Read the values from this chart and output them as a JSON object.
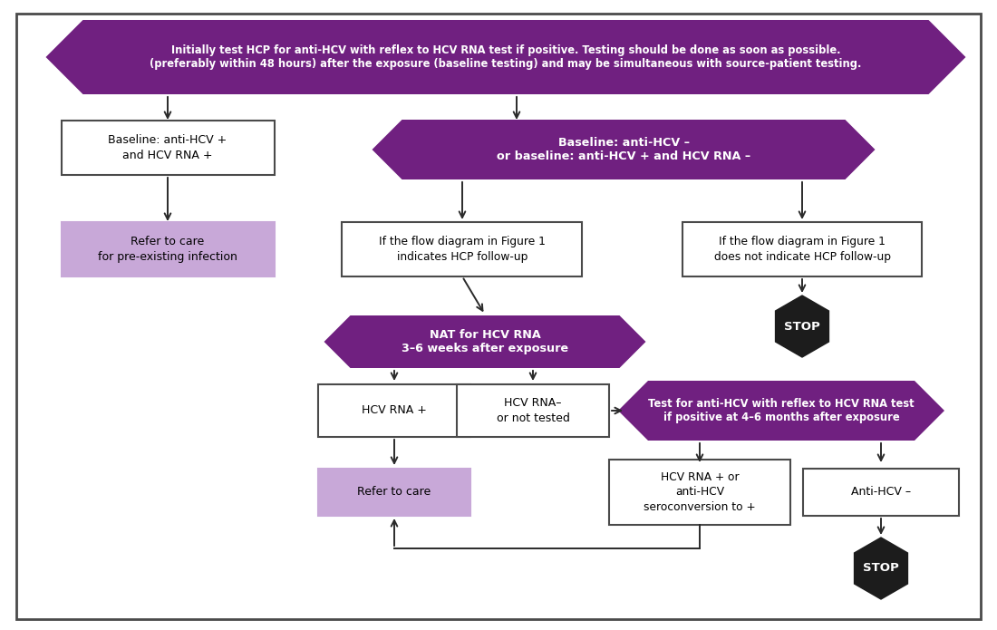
{
  "bg_color": "#ffffff",
  "border_color": "#4a4a4a",
  "purple_dark": "#702080",
  "purple_light": "#c8a8d8",
  "black_stop": "#1c1c1c",
  "white": "#ffffff",
  "box_border": "#4a4a4a",
  "arrow_color": "#2a2a2a",
  "top_hex_text": "Initially test HCP for anti-HCV with reflex to HCV RNA test if positive. Testing should be done as soon as possible.\n(preferably within 48 hours) after the exposure (baseline testing) and may be simultaneous with source-patient testing.",
  "baseline_hex_text": "Baseline: anti-HCV –\nor baseline: anti-HCV + and HCV RNA –",
  "nat_hex_text": "NAT for HCV RNA\n3–6 weeks after exposure",
  "test_hex_text": "Test for anti-HCV with reflex to HCV RNA test\nif positive at 4–6 months after exposure",
  "box1_text": "Baseline: anti-HCV +\nand HCV RNA +",
  "box2_text": "Refer to care\nfor pre-existing infection",
  "box3_text": "If the flow diagram in Figure 1\nindicates HCP follow-up",
  "box4_text": "If the flow diagram in Figure 1\ndoes not indicate HCP follow-up",
  "box5_text": "HCV RNA +",
  "box6_text": "HCV RNA–\nor not tested",
  "box7_text": "Refer to care",
  "box8_text": "HCV RNA + or\nanti-HCV\nseroconversion to +",
  "box9_text": "Anti-HCV –",
  "stop1_text": "STOP",
  "stop2_text": "STOP"
}
